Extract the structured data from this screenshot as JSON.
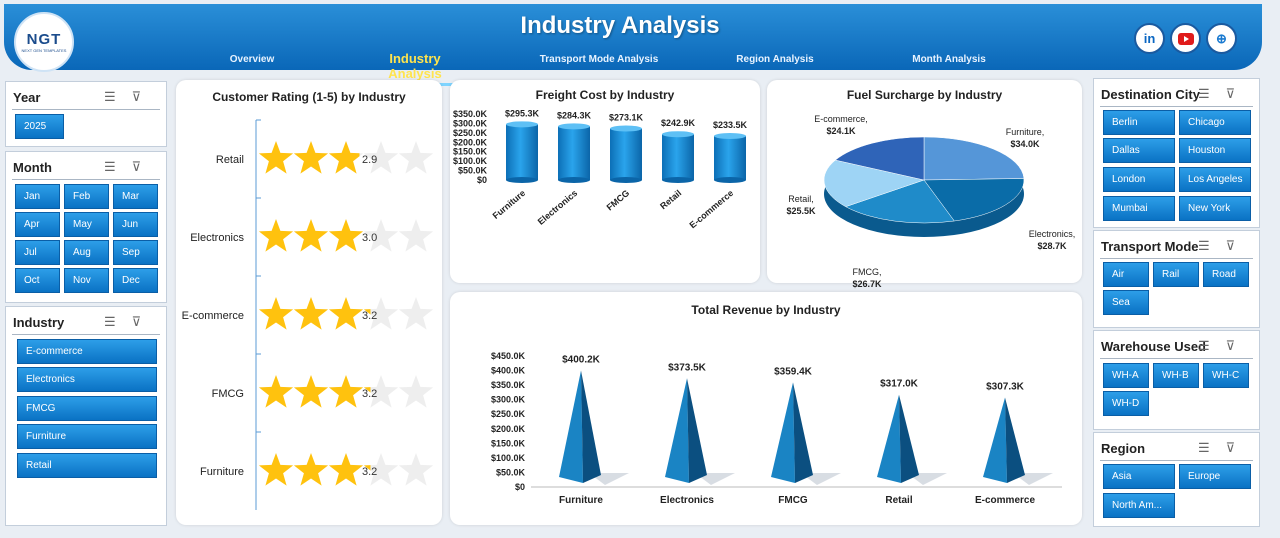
{
  "header": {
    "title": "Industry Analysis",
    "logo_text": "NGT",
    "logo_subtext": "NEXT GEN TEMPLATES",
    "tabs": [
      {
        "label": "Overview",
        "active": false
      },
      {
        "label": "Industry Analysis",
        "active": true
      },
      {
        "label": "Transport Mode Analysis",
        "active": false
      },
      {
        "label": "Region Analysis",
        "active": false
      },
      {
        "label": "Month Analysis",
        "active": false
      }
    ],
    "social_icons": [
      "linkedin-icon",
      "youtube-icon",
      "globe-icon"
    ]
  },
  "slicers_left": {
    "year": {
      "title": "Year",
      "items": [
        "2025"
      ]
    },
    "month": {
      "title": "Month",
      "items": [
        "Jan",
        "Feb",
        "Mar",
        "Apr",
        "May",
        "Jun",
        "Jul",
        "Aug",
        "Sep",
        "Oct",
        "Nov",
        "Dec"
      ]
    },
    "industry": {
      "title": "Industry",
      "items": [
        "E-commerce",
        "Electronics",
        "FMCG",
        "Furniture",
        "Retail"
      ]
    }
  },
  "slicers_right": {
    "destination_city": {
      "title": "Destination City",
      "items": [
        "Berlin",
        "Chicago",
        "Dallas",
        "Houston",
        "London",
        "Los Angeles",
        "Mumbai",
        "New York"
      ]
    },
    "transport_mode": {
      "title": "Transport Mode",
      "items": [
        "Air",
        "Rail",
        "Road",
        "Sea"
      ]
    },
    "warehouse": {
      "title": "Warehouse Used",
      "items": [
        "WH-A",
        "WH-B",
        "WH-C",
        "WH-D"
      ]
    },
    "region": {
      "title": "Region",
      "items": [
        "Asia",
        "Europe",
        "North Am..."
      ]
    }
  },
  "chart_data": [
    {
      "type": "bar",
      "title": "Customer Rating (1-5) by Industry",
      "categories": [
        "Retail",
        "Electronics",
        "E-commerce",
        "FMCG",
        "Furniture"
      ],
      "values": [
        2.9,
        3.0,
        3.2,
        3.2,
        3.2
      ],
      "data_labels": [
        "2.9",
        "3.0",
        "3.2",
        "3.2",
        "3.2"
      ],
      "max_rating": 5,
      "colors": {
        "filled": "#ffc20e",
        "empty": "#eeeeee"
      }
    },
    {
      "type": "bar",
      "title": "Freight Cost by Industry",
      "categories": [
        "Furniture",
        "Electronics",
        "FMCG",
        "Retail",
        "E-commerce"
      ],
      "values": [
        295.3,
        284.3,
        273.1,
        242.9,
        233.5
      ],
      "data_labels": [
        "$295.3K",
        "$284.3K",
        "$273.1K",
        "$242.9K",
        "$233.5K"
      ],
      "yticks": [
        "$0",
        "$50.0K",
        "$100.0K",
        "$150.0K",
        "$200.0K",
        "$250.0K",
        "$300.0K",
        "$350.0K"
      ],
      "ylim": [
        0,
        350
      ],
      "color": "#1a8ad6"
    },
    {
      "type": "pie",
      "title": "Fuel Surcharge by Industry",
      "labels": [
        "Furniture",
        "Electronics",
        "FMCG",
        "Retail",
        "E-commerce"
      ],
      "values": [
        34.0,
        28.7,
        26.7,
        25.5,
        24.1
      ],
      "data_labels": [
        "$34.0K",
        "$28.7K",
        "$26.7K",
        "$25.5K",
        "$24.1K"
      ],
      "colors": [
        "#5596d8",
        "#0a6ca8",
        "#1f8bc9",
        "#9ed4f5",
        "#2f64b8"
      ]
    },
    {
      "type": "bar",
      "title": "Total Revenue by Industry",
      "categories": [
        "Furniture",
        "Electronics",
        "FMCG",
        "Retail",
        "E-commerce"
      ],
      "values": [
        400.2,
        373.5,
        359.4,
        317.0,
        307.3
      ],
      "data_labels": [
        "$400.2K",
        "$373.5K",
        "$359.4K",
        "$317.0K",
        "$307.3K"
      ],
      "yticks": [
        "$0",
        "$50.0K",
        "$100.0K",
        "$150.0K",
        "$200.0K",
        "$250.0K",
        "$300.0K",
        "$350.0K",
        "$400.0K",
        "$450.0K"
      ],
      "ylim": [
        0,
        450
      ],
      "color": "#1a7ab8"
    }
  ]
}
